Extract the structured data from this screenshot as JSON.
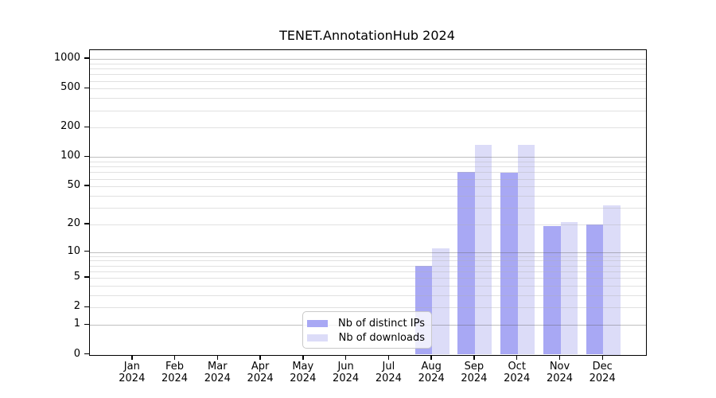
{
  "chart": {
    "title": "TENET.AnnotationHub 2024",
    "legend": {
      "items": [
        {
          "label": "Nb of distinct IPs"
        },
        {
          "label": "Nb of downloads"
        }
      ]
    }
  },
  "chart_data": {
    "type": "bar",
    "title": "TENET.AnnotationHub 2024",
    "categories": [
      "Jan",
      "Feb",
      "Mar",
      "Apr",
      "May",
      "Jun",
      "Jul",
      "Aug",
      "Sep",
      "Oct",
      "Nov",
      "Dec"
    ],
    "category_year": "2024",
    "series": [
      {
        "name": "Nb of distinct IPs",
        "color": "#a8a8f4",
        "values": [
          0,
          0,
          0,
          0,
          0,
          0,
          0,
          7,
          70,
          69,
          19,
          20
        ]
      },
      {
        "name": "Nb of downloads",
        "color": "#dcdcf8",
        "values": [
          0,
          0,
          0,
          0,
          0,
          0,
          0,
          11,
          133,
          133,
          21,
          32
        ]
      }
    ],
    "yscale": "log1p",
    "yticks": [
      0,
      1,
      2,
      5,
      10,
      20,
      50,
      100,
      200,
      500,
      1000
    ],
    "major_grid_values": [
      1,
      10,
      100,
      1000
    ],
    "ylim": [
      0,
      1236
    ],
    "grid": true,
    "legend_position": "lower-center-inside"
  },
  "colors": {
    "bar_ips": "#a8a8f4",
    "bar_downloads": "#dcdcf8",
    "grid_major": "rgba(95,95,95,0.40)",
    "grid_minor": "rgba(175,175,175,0.38)",
    "spine": "#000000",
    "background": "#ffffff"
  }
}
